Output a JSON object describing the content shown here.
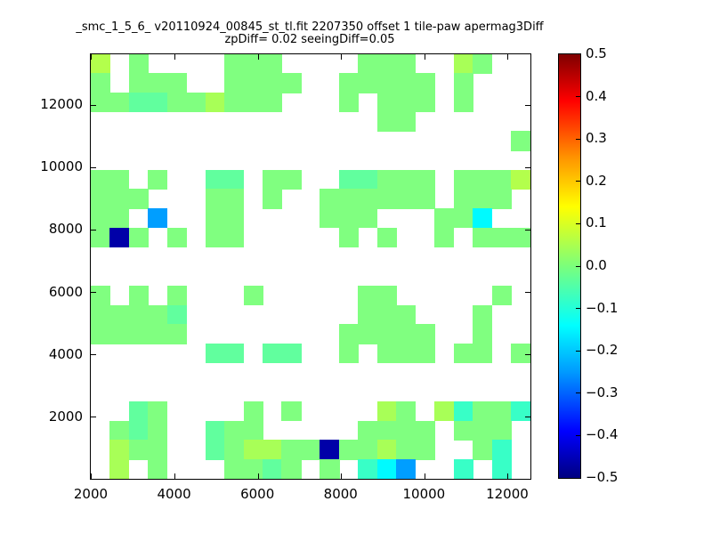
{
  "title": {
    "line1": "_smc_1_5_6_ v20110924_00845_st_tl.fit 2207350 offset 1 tile-paw apermag3Diff",
    "line2": "zpDiff= 0.02 seeingDiff=0.05"
  },
  "axes": {
    "x_tick_labels": [
      "2000",
      "4000",
      "6000",
      "8000",
      "10000",
      "12000"
    ],
    "x_tick_values": [
      2000,
      4000,
      6000,
      8000,
      10000,
      12000
    ],
    "y_tick_labels": [
      "2000",
      "4000",
      "6000",
      "8000",
      "10000",
      "12000"
    ],
    "y_tick_values": [
      2000,
      4000,
      6000,
      8000,
      10000,
      12000
    ]
  },
  "colorbar": {
    "tick_labels": [
      "0.5",
      "0.4",
      "0.3",
      "0.2",
      "0.1",
      "0.0",
      "−0.1",
      "−0.2",
      "−0.3",
      "−0.4",
      "−0.5"
    ],
    "tick_values": [
      0.5,
      0.4,
      0.3,
      0.2,
      0.1,
      0.0,
      -0.1,
      -0.2,
      -0.3,
      -0.4,
      -0.5
    ],
    "vmin": -0.5,
    "vmax": 0.5,
    "colormap": "jet"
  },
  "chart_data": {
    "type": "heatmap",
    "title": "_smc_1_5_6_ v20110924_00845_st_tl.fit 2207350 offset 1 tile-paw apermag3Diff",
    "subtitle": "zpDiff= 0.02 seeingDiff=0.05",
    "xlabel": "",
    "ylabel": "",
    "x_range": [
      1979,
      12535
    ],
    "y_range": [
      30,
      13630
    ],
    "clim": [
      -0.5,
      0.5
    ],
    "colormap": "jet",
    "grid": {
      "cols": 23,
      "rows": 22
    },
    "legend": "colorbar right, ticks -0.5 to 0.5 step 0.1",
    "cells": [
      [
        0,
        21,
        0.05
      ],
      [
        2,
        21,
        0
      ],
      [
        7,
        21,
        0
      ],
      [
        8,
        21,
        0
      ],
      [
        9,
        21,
        0
      ],
      [
        14,
        21,
        0
      ],
      [
        15,
        21,
        0
      ],
      [
        16,
        21,
        0
      ],
      [
        19,
        21,
        0.04
      ],
      [
        20,
        21,
        0
      ],
      [
        0,
        20,
        0
      ],
      [
        2,
        20,
        0
      ],
      [
        3,
        20,
        0
      ],
      [
        4,
        20,
        0
      ],
      [
        7,
        20,
        0
      ],
      [
        8,
        20,
        0
      ],
      [
        9,
        20,
        0
      ],
      [
        10,
        20,
        0
      ],
      [
        13,
        20,
        0
      ],
      [
        14,
        20,
        0
      ],
      [
        15,
        20,
        0
      ],
      [
        16,
        20,
        0
      ],
      [
        17,
        20,
        0
      ],
      [
        19,
        20,
        0
      ],
      [
        0,
        19,
        0
      ],
      [
        1,
        19,
        0
      ],
      [
        2,
        19,
        -0.03
      ],
      [
        3,
        19,
        -0.03
      ],
      [
        4,
        19,
        0
      ],
      [
        5,
        19,
        0
      ],
      [
        6,
        19,
        0.04
      ],
      [
        7,
        19,
        0
      ],
      [
        8,
        19,
        0
      ],
      [
        9,
        19,
        0
      ],
      [
        13,
        19,
        0
      ],
      [
        15,
        19,
        0
      ],
      [
        16,
        19,
        0
      ],
      [
        17,
        19,
        0
      ],
      [
        19,
        19,
        0
      ],
      [
        15,
        18,
        0
      ],
      [
        16,
        18,
        0
      ],
      [
        22,
        17,
        0
      ],
      [
        0,
        15,
        0
      ],
      [
        1,
        15,
        0
      ],
      [
        3,
        15,
        0
      ],
      [
        6,
        15,
        -0.03
      ],
      [
        7,
        15,
        -0.03
      ],
      [
        9,
        15,
        0
      ],
      [
        10,
        15,
        0
      ],
      [
        13,
        15,
        -0.03
      ],
      [
        14,
        15,
        -0.03
      ],
      [
        15,
        15,
        0
      ],
      [
        16,
        15,
        0
      ],
      [
        17,
        15,
        0
      ],
      [
        19,
        15,
        0
      ],
      [
        20,
        15,
        0
      ],
      [
        21,
        15,
        0
      ],
      [
        22,
        15,
        0.05
      ],
      [
        0,
        14,
        0
      ],
      [
        1,
        14,
        0
      ],
      [
        2,
        14,
        0
      ],
      [
        6,
        14,
        0
      ],
      [
        7,
        14,
        0
      ],
      [
        9,
        14,
        0
      ],
      [
        12,
        14,
        0
      ],
      [
        13,
        14,
        0
      ],
      [
        14,
        14,
        0
      ],
      [
        15,
        14,
        0
      ],
      [
        16,
        14,
        0
      ],
      [
        17,
        14,
        0
      ],
      [
        19,
        14,
        0
      ],
      [
        20,
        14,
        0
      ],
      [
        21,
        14,
        0
      ],
      [
        0,
        13,
        0
      ],
      [
        1,
        13,
        0
      ],
      [
        3,
        13,
        -0.22
      ],
      [
        6,
        13,
        0
      ],
      [
        7,
        13,
        0
      ],
      [
        12,
        13,
        0
      ],
      [
        13,
        13,
        0
      ],
      [
        14,
        13,
        0
      ],
      [
        18,
        13,
        0
      ],
      [
        19,
        13,
        0
      ],
      [
        20,
        13,
        -0.13
      ],
      [
        0,
        12,
        0
      ],
      [
        1,
        12,
        -0.46
      ],
      [
        2,
        12,
        0
      ],
      [
        4,
        12,
        0
      ],
      [
        6,
        12,
        0
      ],
      [
        7,
        12,
        0
      ],
      [
        13,
        12,
        0
      ],
      [
        15,
        12,
        0
      ],
      [
        18,
        12,
        0
      ],
      [
        20,
        12,
        0
      ],
      [
        21,
        12,
        0
      ],
      [
        22,
        12,
        0
      ],
      [
        0,
        9,
        0
      ],
      [
        2,
        9,
        0
      ],
      [
        4,
        9,
        0
      ],
      [
        8,
        9,
        0
      ],
      [
        14,
        9,
        0
      ],
      [
        15,
        9,
        0
      ],
      [
        21,
        9,
        0
      ],
      [
        0,
        8,
        0
      ],
      [
        1,
        8,
        0
      ],
      [
        2,
        8,
        0
      ],
      [
        3,
        8,
        0
      ],
      [
        4,
        8,
        -0.03
      ],
      [
        14,
        8,
        0
      ],
      [
        15,
        8,
        0
      ],
      [
        16,
        8,
        0
      ],
      [
        20,
        8,
        0
      ],
      [
        0,
        7,
        0
      ],
      [
        1,
        7,
        0
      ],
      [
        2,
        7,
        0
      ],
      [
        3,
        7,
        0
      ],
      [
        4,
        7,
        0
      ],
      [
        13,
        7,
        0
      ],
      [
        14,
        7,
        0
      ],
      [
        15,
        7,
        0
      ],
      [
        16,
        7,
        0
      ],
      [
        17,
        7,
        0
      ],
      [
        20,
        7,
        0
      ],
      [
        6,
        6,
        -0.03
      ],
      [
        7,
        6,
        -0.03
      ],
      [
        9,
        6,
        -0.03
      ],
      [
        10,
        6,
        -0.03
      ],
      [
        13,
        6,
        0
      ],
      [
        15,
        6,
        0
      ],
      [
        16,
        6,
        0
      ],
      [
        17,
        6,
        0
      ],
      [
        19,
        6,
        0
      ],
      [
        20,
        6,
        0
      ],
      [
        22,
        6,
        0
      ],
      [
        2,
        3,
        -0.03
      ],
      [
        3,
        3,
        0
      ],
      [
        8,
        3,
        0
      ],
      [
        10,
        3,
        0
      ],
      [
        15,
        3,
        0.04
      ],
      [
        16,
        3,
        0
      ],
      [
        18,
        3,
        0.04
      ],
      [
        19,
        3,
        -0.07
      ],
      [
        20,
        3,
        0
      ],
      [
        21,
        3,
        0
      ],
      [
        22,
        3,
        -0.07
      ],
      [
        1,
        2,
        0
      ],
      [
        2,
        2,
        -0.03
      ],
      [
        3,
        2,
        0
      ],
      [
        6,
        2,
        -0.03
      ],
      [
        7,
        2,
        0
      ],
      [
        8,
        2,
        0
      ],
      [
        14,
        2,
        0
      ],
      [
        15,
        2,
        0
      ],
      [
        16,
        2,
        0
      ],
      [
        17,
        2,
        0
      ],
      [
        19,
        2,
        0
      ],
      [
        20,
        2,
        0
      ],
      [
        21,
        2,
        0
      ],
      [
        1,
        1,
        0.04
      ],
      [
        2,
        1,
        0
      ],
      [
        3,
        1,
        0
      ],
      [
        6,
        1,
        -0.03
      ],
      [
        7,
        1,
        0
      ],
      [
        8,
        1,
        0.04
      ],
      [
        9,
        1,
        0.04
      ],
      [
        10,
        1,
        0
      ],
      [
        11,
        1,
        0
      ],
      [
        12,
        1,
        -0.46
      ],
      [
        13,
        1,
        0
      ],
      [
        14,
        1,
        0
      ],
      [
        15,
        1,
        0.04
      ],
      [
        16,
        1,
        0
      ],
      [
        17,
        1,
        0
      ],
      [
        20,
        1,
        0
      ],
      [
        21,
        1,
        -0.07
      ],
      [
        1,
        0,
        0.04
      ],
      [
        3,
        0,
        0
      ],
      [
        7,
        0,
        0
      ],
      [
        8,
        0,
        0
      ],
      [
        9,
        0,
        -0.03
      ],
      [
        10,
        0,
        0
      ],
      [
        12,
        0,
        0
      ],
      [
        14,
        0,
        -0.07
      ],
      [
        15,
        0,
        -0.13
      ],
      [
        16,
        0,
        -0.22
      ],
      [
        19,
        0,
        -0.07
      ],
      [
        21,
        0,
        -0.07
      ]
    ]
  }
}
